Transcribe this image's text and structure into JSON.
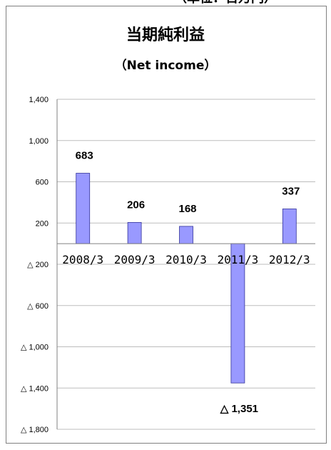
{
  "header": {
    "top_fragment": "（単位：百万円）"
  },
  "chart_data": {
    "type": "bar",
    "title": "当期純利益",
    "subtitle": "（Net income）",
    "categories": [
      "2008/3",
      "2009/3",
      "2010/3",
      "2011/3",
      "2012/3"
    ],
    "values": [
      683,
      206,
      168,
      -1351,
      337
    ],
    "data_labels": [
      "683",
      "206",
      "168",
      "△ 1,351",
      "337"
    ],
    "ylim": [
      -1800,
      1400
    ],
    "yticks": [
      1400,
      1000,
      600,
      200,
      -200,
      -600,
      -1000,
      -1400,
      -1800
    ],
    "ytick_labels": [
      "1,400",
      "1,000",
      "600",
      "200",
      "△ 200",
      "△ 600",
      "△ 1,000",
      "△ 1,400",
      "△ 1,800"
    ],
    "grid": true,
    "colors": {
      "bar_fill": "#9999ff",
      "bar_stroke": "#333399",
      "gridline": "#bdbdbd",
      "frame": "#808080"
    }
  }
}
